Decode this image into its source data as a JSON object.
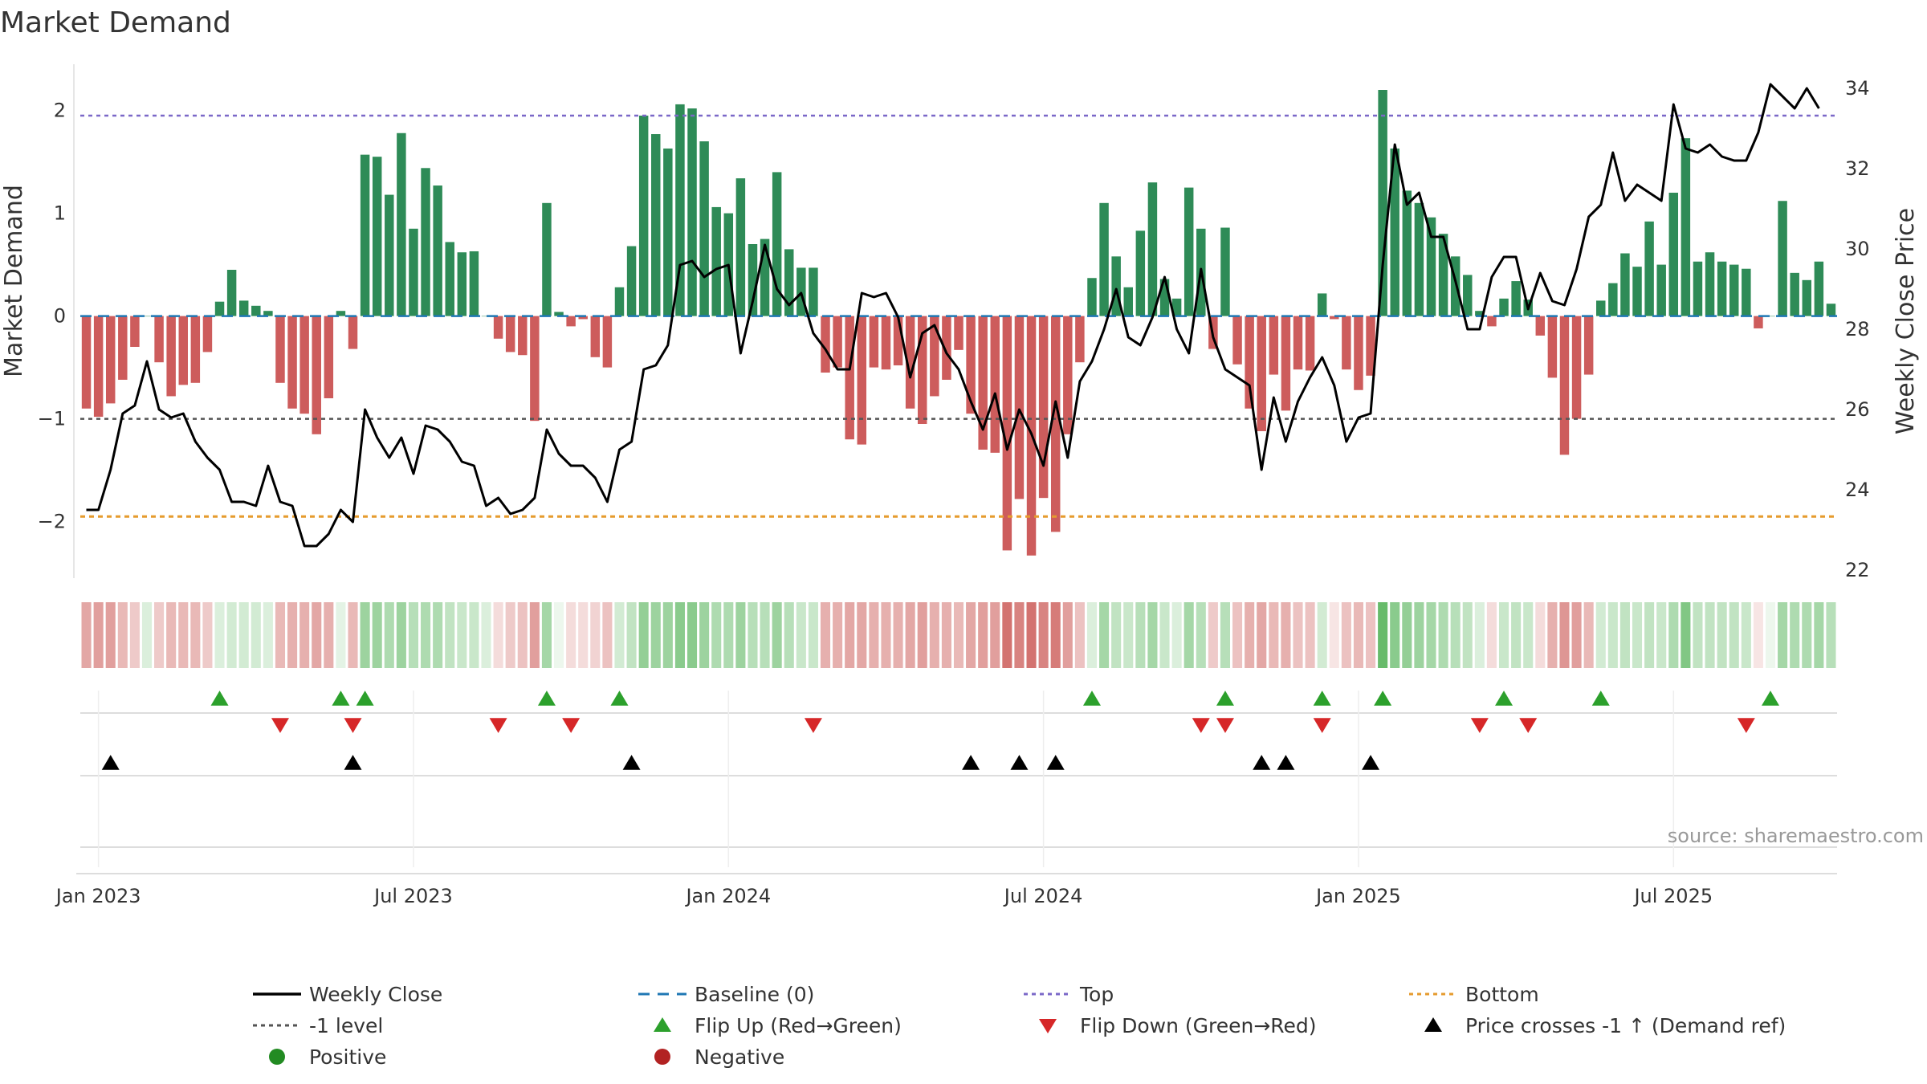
{
  "title": "Market Demand",
  "source_text": "source: sharemaestro.com",
  "chart_data": {
    "type": "bar",
    "title": "Market Demand",
    "ylabel": "Market Demand",
    "y2label": "Weekly Close Price",
    "ylim": [
      -2.55,
      2.45
    ],
    "y2lim": [
      21.8,
      34.6
    ],
    "yticks": [
      -2,
      -1,
      0,
      1,
      2
    ],
    "y2ticks": [
      22,
      24,
      26,
      28,
      30,
      32,
      34
    ],
    "x_ticks": [
      "Jan 2023",
      "Jul 2023",
      "Jan 2024",
      "Jul 2024",
      "Jan 2025",
      "Jul 2025"
    ],
    "reference_lines": {
      "top": 1.95,
      "minus_one": -1,
      "bottom": -1.95,
      "baseline": 0
    },
    "grid": false,
    "legend_position": "bottom",
    "colors": {
      "positive": "#2e8b57",
      "negative": "#cd5c5c",
      "price": "#000000",
      "top": "#7b68c8",
      "bottom": "#e69b2e",
      "minus_one": "#555555",
      "baseline": "#1f77b4",
      "flip_up": "#2ca02c",
      "flip_down": "#d62728"
    },
    "series": [
      {
        "name": "Market Demand",
        "values": [
          -0.9,
          -0.98,
          -0.85,
          -0.62,
          -0.3,
          0,
          -0.45,
          -0.78,
          -0.67,
          -0.65,
          -0.35,
          0.14,
          0.45,
          0.15,
          0.1,
          0.05,
          -0.65,
          -0.9,
          -0.95,
          -1.15,
          -0.8,
          0.05,
          -0.32,
          1.57,
          1.55,
          1.18,
          1.78,
          0.85,
          1.44,
          1.27,
          0.72,
          0.62,
          0.63,
          0,
          -0.22,
          -0.35,
          -0.38,
          -1.02,
          1.1,
          0.04,
          -0.1,
          -0.03,
          -0.4,
          -0.5,
          0.28,
          0.68,
          1.95,
          1.77,
          1.63,
          2.06,
          2.02,
          1.7,
          1.06,
          1.0,
          1.34,
          0.7,
          0.75,
          1.4,
          0.65,
          0.47,
          0.47,
          -0.55,
          -0.5,
          -1.2,
          -1.25,
          -0.5,
          -0.52,
          -0.48,
          -0.9,
          -1.05,
          -0.78,
          -0.62,
          -0.33,
          -0.95,
          -1.3,
          -1.33,
          -2.28,
          -1.78,
          -2.33,
          -1.77,
          -2.1,
          -1.15,
          -0.45,
          0.37,
          1.1,
          0.58,
          0.28,
          0.83,
          1.3,
          0.36,
          0.17,
          1.25,
          0.85,
          -0.32,
          0.86,
          -0.47,
          -0.9,
          -1.12,
          -0.57,
          -0.92,
          -0.52,
          -0.53,
          0.22,
          -0.03,
          -0.52,
          -0.72,
          -0.58,
          2.2,
          1.63,
          1.22,
          1.1,
          0.96,
          0.8,
          0.58,
          0.4,
          0.05,
          -0.1,
          0.17,
          0.34,
          0.16,
          -0.19,
          -0.6,
          -1.35,
          -1.0,
          -0.57,
          0.15,
          0.32,
          0.61,
          0.48,
          0.92,
          0.5,
          1.2,
          1.73,
          0.53,
          0.62,
          0.53,
          0.5,
          0.46,
          -0.12,
          0,
          1.12,
          0.42,
          0.35,
          0.53,
          0.12
        ]
      },
      {
        "name": "Weekly Close",
        "values": [
          23.5,
          23.5,
          24.5,
          25.9,
          26.1,
          27.2,
          26.0,
          25.8,
          25.9,
          25.2,
          24.8,
          24.5,
          23.7,
          23.7,
          23.6,
          24.6,
          23.7,
          23.6,
          22.6,
          22.6,
          22.9,
          23.5,
          23.2,
          26.0,
          25.3,
          24.8,
          25.3,
          24.4,
          25.6,
          25.5,
          25.2,
          24.7,
          24.6,
          23.6,
          23.8,
          23.4,
          23.5,
          23.8,
          25.5,
          24.9,
          24.6,
          24.6,
          24.3,
          23.7,
          25.0,
          25.2,
          27.0,
          27.1,
          27.6,
          29.6,
          29.7,
          29.3,
          29.5,
          29.6,
          27.4,
          28.7,
          30.1,
          29.0,
          28.6,
          28.9,
          27.9,
          27.5,
          27.0,
          27.0,
          28.9,
          28.8,
          28.9,
          28.3,
          26.8,
          27.9,
          28.1,
          27.4,
          27.0,
          26.2,
          25.5,
          26.4,
          25.0,
          26.0,
          25.4,
          24.6,
          26.2,
          24.8,
          26.7,
          27.2,
          28.0,
          29.0,
          27.8,
          27.6,
          28.3,
          29.3,
          28.0,
          27.4,
          29.5,
          27.8,
          27.0,
          26.8,
          26.6,
          24.5,
          26.3,
          25.2,
          26.2,
          26.8,
          27.3,
          26.6,
          25.2,
          25.8,
          25.9,
          29.6,
          32.6,
          31.1,
          31.4,
          30.3,
          30.3,
          29.2,
          28.0,
          28.0,
          29.3,
          29.8,
          29.8,
          28.5,
          29.4,
          28.7,
          28.6,
          29.5,
          30.8,
          31.1,
          32.4,
          31.2,
          31.6,
          31.4,
          31.2,
          33.6,
          32.5,
          32.4,
          32.6,
          32.3,
          32.2,
          32.2,
          32.9,
          34.1,
          33.8,
          33.5,
          34.0,
          33.5
        ]
      }
    ],
    "bands": [
      0.5,
      0.55,
      0.55,
      0.4,
      0.3,
      0.2,
      0.3,
      0.4,
      0.4,
      0.4,
      0.3,
      0.2,
      0.25,
      0.25,
      0.25,
      0.2,
      0.4,
      0.45,
      0.45,
      0.5,
      0.45,
      0.15,
      0.4,
      0.55,
      0.55,
      0.45,
      0.55,
      0.4,
      0.45,
      0.45,
      0.35,
      0.3,
      0.3,
      0.2,
      0.2,
      0.3,
      0.35,
      0.55,
      0.5,
      0.1,
      0.2,
      0.2,
      0.25,
      0.35,
      0.25,
      0.35,
      0.6,
      0.55,
      0.55,
      0.65,
      0.65,
      0.55,
      0.45,
      0.45,
      0.55,
      0.4,
      0.4,
      0.55,
      0.4,
      0.3,
      0.3,
      0.45,
      0.45,
      0.5,
      0.5,
      0.45,
      0.45,
      0.45,
      0.5,
      0.55,
      0.45,
      0.45,
      0.4,
      0.5,
      0.55,
      0.55,
      0.8,
      0.7,
      0.8,
      0.7,
      0.75,
      0.55,
      0.35,
      0.2,
      0.5,
      0.35,
      0.3,
      0.4,
      0.5,
      0.3,
      0.2,
      0.5,
      0.4,
      0.3,
      0.4,
      0.35,
      0.45,
      0.5,
      0.4,
      0.45,
      0.35,
      0.35,
      0.25,
      0.15,
      0.35,
      0.4,
      0.35,
      0.85,
      0.65,
      0.6,
      0.55,
      0.5,
      0.45,
      0.4,
      0.35,
      0.2,
      0.2,
      0.3,
      0.35,
      0.3,
      0.2,
      0.45,
      0.6,
      0.55,
      0.4,
      0.25,
      0.3,
      0.35,
      0.3,
      0.35,
      0.3,
      0.45,
      0.7,
      0.35,
      0.35,
      0.35,
      0.35,
      0.3,
      0.15,
      0.1,
      0.5,
      0.45,
      0.45,
      0.5,
      0.4
    ],
    "flip_up_weeks": [
      11,
      21,
      23,
      38,
      44,
      83,
      94,
      102,
      107,
      117,
      125,
      139
    ],
    "flip_down_weeks": [
      16,
      22,
      34,
      40,
      60,
      92,
      94,
      102,
      115,
      119,
      137
    ],
    "cross_weeks": [
      2,
      22,
      45,
      73,
      77,
      80,
      97,
      99,
      106
    ]
  },
  "legend": [
    {
      "label": "Weekly Close",
      "kind": "line",
      "color": "#000000"
    },
    {
      "label": "Baseline (0)",
      "kind": "dash",
      "color": "#1f77b4"
    },
    {
      "label": "Top",
      "kind": "dot",
      "color": "#7b68c8"
    },
    {
      "label": "Bottom",
      "kind": "dot",
      "color": "#e69b2e"
    },
    {
      "label": "-1 level",
      "kind": "dot",
      "color": "#555555"
    },
    {
      "label": "Flip Up (Red→Green)",
      "kind": "tri-up",
      "color": "#2ca02c"
    },
    {
      "label": "Flip Down (Green→Red)",
      "kind": "tri-down",
      "color": "#d62728"
    },
    {
      "label": "Price crosses -1 ↑ (Demand ref)",
      "kind": "tri-up",
      "color": "#000000"
    },
    {
      "label": "Positive",
      "kind": "circle",
      "color": "#228b22"
    },
    {
      "label": "Negative",
      "kind": "circle",
      "color": "#b22222"
    }
  ]
}
